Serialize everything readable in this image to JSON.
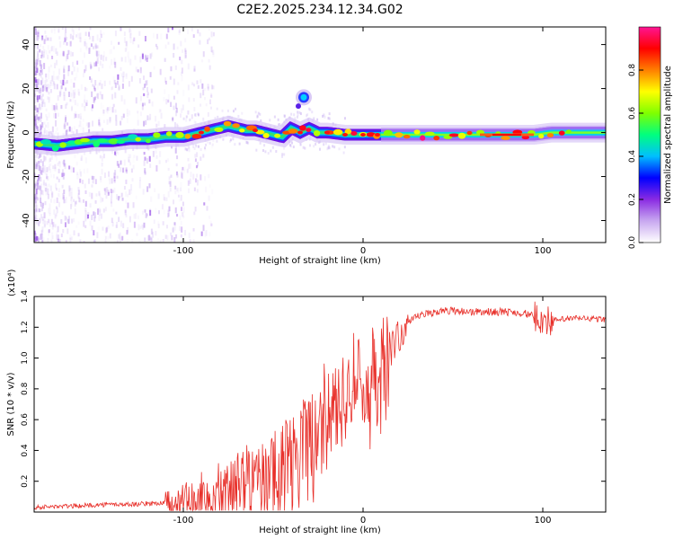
{
  "title": "C2E2.2025.234.12.34.G02",
  "chart_data": [
    {
      "type": "heatmap",
      "title": "",
      "xlabel": "Height of straight line (km)",
      "ylabel": "Frequency (Hz)",
      "xlim": [
        -183,
        135
      ],
      "ylim": [
        -50,
        48
      ],
      "xticks": [
        -100,
        0,
        100
      ],
      "xtick_labels": [
        "-100",
        "0",
        "100"
      ],
      "yticks": [
        40,
        20,
        0,
        -20,
        -40
      ],
      "ytick_labels": [
        "40",
        "20",
        "0",
        "-20",
        "-40"
      ],
      "colorbar": {
        "label": "Normalized spectral amplitude",
        "range": [
          0.0,
          1.0
        ],
        "ticks": [
          0.0,
          0.2,
          0.4,
          0.6,
          0.8
        ],
        "tick_labels": [
          "0.0",
          "0.2",
          "0.4",
          "0.6",
          "0.8"
        ],
        "colormap": [
          "#ffffff",
          "#c8a8f0",
          "#8a2be2",
          "#0000ff",
          "#00bfff",
          "#00ff7f",
          "#7fff00",
          "#ffff00",
          "#ff7f00",
          "#ff0000",
          "#ff1493"
        ]
      },
      "ridge": {
        "x": [
          -183,
          -170,
          -160,
          -150,
          -140,
          -130,
          -120,
          -110,
          -100,
          -90,
          -80,
          -75,
          -70,
          -65,
          -60,
          -55,
          -50,
          -45,
          -40,
          -35,
          -30,
          -25,
          -20,
          -10,
          0,
          10,
          20,
          40,
          60,
          80,
          95,
          105,
          120,
          135
        ],
        "freq": [
          -5,
          -6,
          -5,
          -4,
          -4,
          -3,
          -3,
          -2,
          -2,
          0,
          2,
          3,
          2,
          1,
          1,
          0,
          -1,
          -2,
          2,
          0,
          2,
          0,
          0,
          -1,
          -1,
          -1,
          -1,
          -1,
          -1,
          -1,
          -1,
          0,
          0,
          0
        ]
      },
      "burst": {
        "x": -33,
        "freq": 16
      }
    },
    {
      "type": "line",
      "title": "",
      "xlabel": "Height of straight line (km)",
      "ylabel": "SNR (10 * v/v)",
      "y_multiplier_label": "(x10⁴)",
      "xlim": [
        -183,
        135
      ],
      "ylim": [
        0,
        1.4
      ],
      "xticks": [
        -100,
        0,
        100
      ],
      "xtick_labels": [
        "-100",
        "0",
        "100"
      ],
      "yticks": [
        0.2,
        0.4,
        0.6,
        0.8,
        1.0,
        1.2,
        1.4
      ],
      "ytick_labels": [
        "0.2",
        "0.4",
        "0.6",
        "0.8",
        "1.0",
        "1.2",
        "1.4"
      ],
      "color": "#e8302a",
      "series": [
        {
          "name": "SNR",
          "x": [
            -183,
            -160,
            -140,
            -130,
            -110,
            -100,
            -90,
            -85,
            -80,
            -70,
            -60,
            -50,
            -45,
            -40,
            -35,
            -30,
            -25,
            -20,
            -15,
            -10,
            -5,
            0,
            5,
            10,
            15,
            20,
            25,
            30,
            40,
            50,
            60,
            70,
            80,
            90,
            95,
            100,
            105,
            110,
            120,
            135
          ],
          "y": [
            0.03,
            0.04,
            0.05,
            0.05,
            0.06,
            0.08,
            0.12,
            0.16,
            0.18,
            0.2,
            0.22,
            0.25,
            0.3,
            0.35,
            0.4,
            0.45,
            0.55,
            0.65,
            0.75,
            0.8,
            0.85,
            0.88,
            0.9,
            0.95,
            1.05,
            1.15,
            1.22,
            1.27,
            1.3,
            1.31,
            1.3,
            1.3,
            1.3,
            1.29,
            1.27,
            1.25,
            1.24,
            1.25,
            1.26,
            1.25
          ]
        }
      ]
    }
  ]
}
